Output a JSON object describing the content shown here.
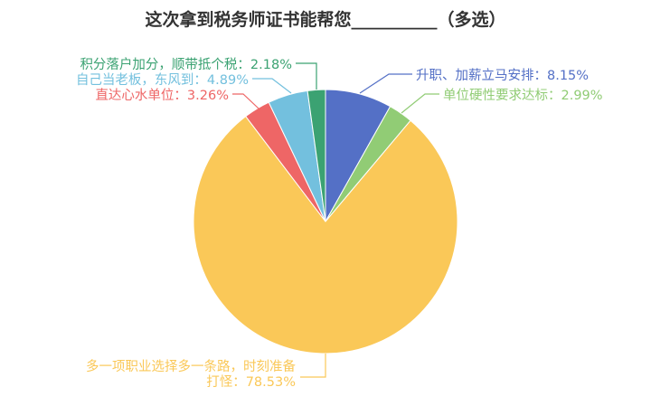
{
  "chart_data": {
    "type": "pie",
    "title": "这次拿到税务师证书能帮您__________（多选）",
    "start_angle_deg": 90,
    "direction": "clockwise",
    "slices": [
      {
        "label": "升职、加薪立马安排：8.15%",
        "value": 8.15,
        "color": "#5470c6"
      },
      {
        "label": "单位硬性要求达标：2.99%",
        "value": 2.99,
        "color": "#91cc75"
      },
      {
        "label": "多一项职业选择多一条路，时刻准备打怪：78.53%",
        "label_lines": [
          "多一项职业选择多一条路，时刻准备",
          "打怪：78.53%"
        ],
        "value": 78.53,
        "color": "#fac858"
      },
      {
        "label": "直达心水单位：3.26%",
        "value": 3.26,
        "color": "#ee6666"
      },
      {
        "label": "自己当老板，东风到：4.89%",
        "value": 4.89,
        "color": "#73c0de"
      },
      {
        "label": "积分落户加分，顺带抵个税：2.18%",
        "value": 2.18,
        "color": "#3ba272"
      }
    ]
  }
}
